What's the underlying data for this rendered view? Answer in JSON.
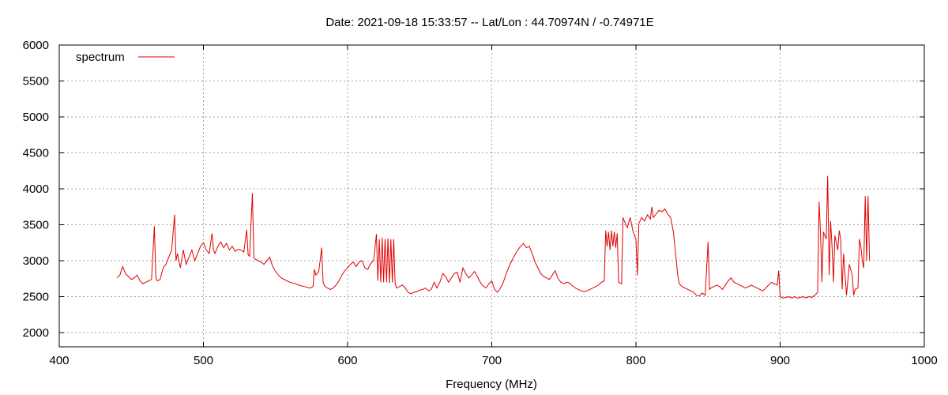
{
  "chart_data": {
    "type": "line",
    "title": "Date: 2021-09-18 15:33:57  --  Lat/Lon : 44.70974N / -0.74971E",
    "xlabel": "Frequency (MHz)",
    "ylabel": "",
    "xlim": [
      400,
      1000
    ],
    "ylim": [
      1800,
      6000
    ],
    "x_ticks": [
      400,
      500,
      600,
      700,
      800,
      900,
      1000
    ],
    "y_ticks": [
      2000,
      2500,
      3000,
      3500,
      4000,
      4500,
      5000,
      5500,
      6000
    ],
    "grid": true,
    "legend_position": "top-left",
    "series": [
      {
        "name": "spectrum",
        "color": "#e00000",
        "points": [
          [
            440,
            2760
          ],
          [
            442,
            2800
          ],
          [
            444,
            2920
          ],
          [
            446,
            2820
          ],
          [
            448,
            2780
          ],
          [
            450,
            2740
          ],
          [
            452,
            2760
          ],
          [
            454,
            2800
          ],
          [
            456,
            2720
          ],
          [
            458,
            2680
          ],
          [
            460,
            2700
          ],
          [
            462,
            2720
          ],
          [
            464,
            2740
          ],
          [
            466,
            3480
          ],
          [
            467,
            2760
          ],
          [
            468,
            2720
          ],
          [
            470,
            2740
          ],
          [
            472,
            2900
          ],
          [
            474,
            2950
          ],
          [
            476,
            3050
          ],
          [
            478,
            3150
          ],
          [
            480,
            3640
          ],
          [
            481,
            3000
          ],
          [
            482,
            3100
          ],
          [
            484,
            2900
          ],
          [
            486,
            3150
          ],
          [
            488,
            2950
          ],
          [
            490,
            3050
          ],
          [
            492,
            3150
          ],
          [
            494,
            3000
          ],
          [
            496,
            3100
          ],
          [
            498,
            3200
          ],
          [
            500,
            3250
          ],
          [
            502,
            3150
          ],
          [
            504,
            3100
          ],
          [
            506,
            3380
          ],
          [
            507,
            3150
          ],
          [
            508,
            3100
          ],
          [
            510,
            3200
          ],
          [
            512,
            3260
          ],
          [
            514,
            3180
          ],
          [
            516,
            3240
          ],
          [
            518,
            3150
          ],
          [
            520,
            3200
          ],
          [
            522,
            3130
          ],
          [
            524,
            3160
          ],
          [
            526,
            3150
          ],
          [
            528,
            3120
          ],
          [
            530,
            3430
          ],
          [
            531,
            3080
          ],
          [
            532,
            3060
          ],
          [
            534,
            3940
          ],
          [
            535,
            3040
          ],
          [
            536,
            3020
          ],
          [
            538,
            3000
          ],
          [
            540,
            2980
          ],
          [
            542,
            2950
          ],
          [
            544,
            3000
          ],
          [
            546,
            3050
          ],
          [
            548,
            2920
          ],
          [
            550,
            2850
          ],
          [
            552,
            2800
          ],
          [
            554,
            2760
          ],
          [
            556,
            2740
          ],
          [
            558,
            2720
          ],
          [
            560,
            2700
          ],
          [
            562,
            2690
          ],
          [
            564,
            2680
          ],
          [
            566,
            2660
          ],
          [
            568,
            2650
          ],
          [
            570,
            2640
          ],
          [
            572,
            2630
          ],
          [
            574,
            2620
          ],
          [
            576,
            2640
          ],
          [
            577,
            2880
          ],
          [
            578,
            2800
          ],
          [
            580,
            2850
          ],
          [
            582,
            3180
          ],
          [
            583,
            2700
          ],
          [
            584,
            2650
          ],
          [
            586,
            2620
          ],
          [
            588,
            2600
          ],
          [
            590,
            2620
          ],
          [
            592,
            2660
          ],
          [
            594,
            2720
          ],
          [
            596,
            2800
          ],
          [
            598,
            2860
          ],
          [
            600,
            2900
          ],
          [
            602,
            2950
          ],
          [
            604,
            2980
          ],
          [
            606,
            2920
          ],
          [
            608,
            2980
          ],
          [
            610,
            3000
          ],
          [
            612,
            2900
          ],
          [
            614,
            2880
          ],
          [
            616,
            2960
          ],
          [
            618,
            3000
          ],
          [
            620,
            3370
          ],
          [
            621,
            2720
          ],
          [
            622,
            3300
          ],
          [
            623,
            2700
          ],
          [
            624,
            3320
          ],
          [
            625,
            2700
          ],
          [
            626,
            3300
          ],
          [
            627,
            2700
          ],
          [
            628,
            3310
          ],
          [
            629,
            2690
          ],
          [
            630,
            3300
          ],
          [
            631,
            2700
          ],
          [
            632,
            3300
          ],
          [
            633,
            2680
          ],
          [
            634,
            2620
          ],
          [
            636,
            2640
          ],
          [
            638,
            2660
          ],
          [
            640,
            2620
          ],
          [
            642,
            2560
          ],
          [
            644,
            2540
          ],
          [
            646,
            2560
          ],
          [
            648,
            2570
          ],
          [
            650,
            2590
          ],
          [
            652,
            2600
          ],
          [
            654,
            2620
          ],
          [
            656,
            2580
          ],
          [
            658,
            2600
          ],
          [
            660,
            2700
          ],
          [
            662,
            2620
          ],
          [
            664,
            2700
          ],
          [
            666,
            2820
          ],
          [
            668,
            2780
          ],
          [
            670,
            2700
          ],
          [
            672,
            2760
          ],
          [
            674,
            2820
          ],
          [
            676,
            2840
          ],
          [
            678,
            2700
          ],
          [
            680,
            2900
          ],
          [
            682,
            2820
          ],
          [
            684,
            2760
          ],
          [
            686,
            2800
          ],
          [
            688,
            2850
          ],
          [
            690,
            2780
          ],
          [
            692,
            2700
          ],
          [
            694,
            2650
          ],
          [
            696,
            2620
          ],
          [
            698,
            2680
          ],
          [
            700,
            2720
          ],
          [
            702,
            2600
          ],
          [
            704,
            2560
          ],
          [
            706,
            2620
          ],
          [
            708,
            2700
          ],
          [
            710,
            2820
          ],
          [
            712,
            2920
          ],
          [
            714,
            3000
          ],
          [
            716,
            3080
          ],
          [
            718,
            3150
          ],
          [
            720,
            3200
          ],
          [
            722,
            3240
          ],
          [
            724,
            3180
          ],
          [
            726,
            3200
          ],
          [
            728,
            3100
          ],
          [
            730,
            2980
          ],
          [
            732,
            2900
          ],
          [
            734,
            2820
          ],
          [
            736,
            2780
          ],
          [
            738,
            2760
          ],
          [
            740,
            2740
          ],
          [
            742,
            2800
          ],
          [
            744,
            2860
          ],
          [
            746,
            2750
          ],
          [
            748,
            2700
          ],
          [
            750,
            2680
          ],
          [
            752,
            2700
          ],
          [
            754,
            2690
          ],
          [
            756,
            2650
          ],
          [
            758,
            2620
          ],
          [
            760,
            2600
          ],
          [
            762,
            2580
          ],
          [
            764,
            2570
          ],
          [
            766,
            2580
          ],
          [
            768,
            2600
          ],
          [
            770,
            2620
          ],
          [
            772,
            2640
          ],
          [
            774,
            2660
          ],
          [
            776,
            2700
          ],
          [
            778,
            2720
          ],
          [
            779,
            3420
          ],
          [
            780,
            3200
          ],
          [
            781,
            3400
          ],
          [
            782,
            3150
          ],
          [
            783,
            3420
          ],
          [
            784,
            3200
          ],
          [
            785,
            3400
          ],
          [
            786,
            3180
          ],
          [
            787,
            3380
          ],
          [
            788,
            2700
          ],
          [
            790,
            2680
          ],
          [
            791,
            3600
          ],
          [
            792,
            3550
          ],
          [
            794,
            3460
          ],
          [
            796,
            3600
          ],
          [
            798,
            3400
          ],
          [
            800,
            3300
          ],
          [
            801,
            2800
          ],
          [
            802,
            3520
          ],
          [
            804,
            3600
          ],
          [
            806,
            3550
          ],
          [
            808,
            3640
          ],
          [
            810,
            3580
          ],
          [
            811,
            3750
          ],
          [
            812,
            3600
          ],
          [
            814,
            3650
          ],
          [
            816,
            3700
          ],
          [
            818,
            3680
          ],
          [
            820,
            3720
          ],
          [
            822,
            3650
          ],
          [
            824,
            3600
          ],
          [
            826,
            3400
          ],
          [
            828,
            3000
          ],
          [
            829,
            2800
          ],
          [
            830,
            2680
          ],
          [
            832,
            2640
          ],
          [
            834,
            2620
          ],
          [
            836,
            2600
          ],
          [
            838,
            2580
          ],
          [
            840,
            2560
          ],
          [
            842,
            2520
          ],
          [
            844,
            2510
          ],
          [
            846,
            2550
          ],
          [
            848,
            2520
          ],
          [
            850,
            3260
          ],
          [
            851,
            2600
          ],
          [
            852,
            2620
          ],
          [
            854,
            2640
          ],
          [
            856,
            2660
          ],
          [
            858,
            2640
          ],
          [
            860,
            2600
          ],
          [
            862,
            2660
          ],
          [
            864,
            2720
          ],
          [
            866,
            2760
          ],
          [
            868,
            2700
          ],
          [
            870,
            2680
          ],
          [
            872,
            2660
          ],
          [
            874,
            2640
          ],
          [
            876,
            2620
          ],
          [
            878,
            2640
          ],
          [
            880,
            2660
          ],
          [
            882,
            2640
          ],
          [
            884,
            2620
          ],
          [
            886,
            2600
          ],
          [
            888,
            2580
          ],
          [
            890,
            2620
          ],
          [
            892,
            2660
          ],
          [
            894,
            2700
          ],
          [
            896,
            2680
          ],
          [
            898,
            2660
          ],
          [
            899,
            2860
          ],
          [
            900,
            2500
          ],
          [
            902,
            2480
          ],
          [
            904,
            2490
          ],
          [
            906,
            2500
          ],
          [
            908,
            2480
          ],
          [
            910,
            2500
          ],
          [
            912,
            2480
          ],
          [
            914,
            2490
          ],
          [
            916,
            2500
          ],
          [
            918,
            2480
          ],
          [
            920,
            2500
          ],
          [
            922,
            2490
          ],
          [
            924,
            2520
          ],
          [
            926,
            2560
          ],
          [
            927,
            3820
          ],
          [
            928,
            3400
          ],
          [
            929,
            2700
          ],
          [
            930,
            3400
          ],
          [
            932,
            3300
          ],
          [
            933,
            4180
          ],
          [
            934,
            2800
          ],
          [
            935,
            3550
          ],
          [
            936,
            3200
          ],
          [
            937,
            2700
          ],
          [
            938,
            3350
          ],
          [
            940,
            3150
          ],
          [
            941,
            3420
          ],
          [
            942,
            3300
          ],
          [
            943,
            2600
          ],
          [
            944,
            3100
          ],
          [
            946,
            2520
          ],
          [
            948,
            2950
          ],
          [
            950,
            2800
          ],
          [
            951,
            2520
          ],
          [
            952,
            2600
          ],
          [
            954,
            2620
          ],
          [
            955,
            3300
          ],
          [
            956,
            3200
          ],
          [
            957,
            3000
          ],
          [
            958,
            2900
          ],
          [
            959,
            3900
          ],
          [
            960,
            3000
          ],
          [
            961,
            3900
          ],
          [
            962,
            3000
          ]
        ]
      }
    ]
  }
}
